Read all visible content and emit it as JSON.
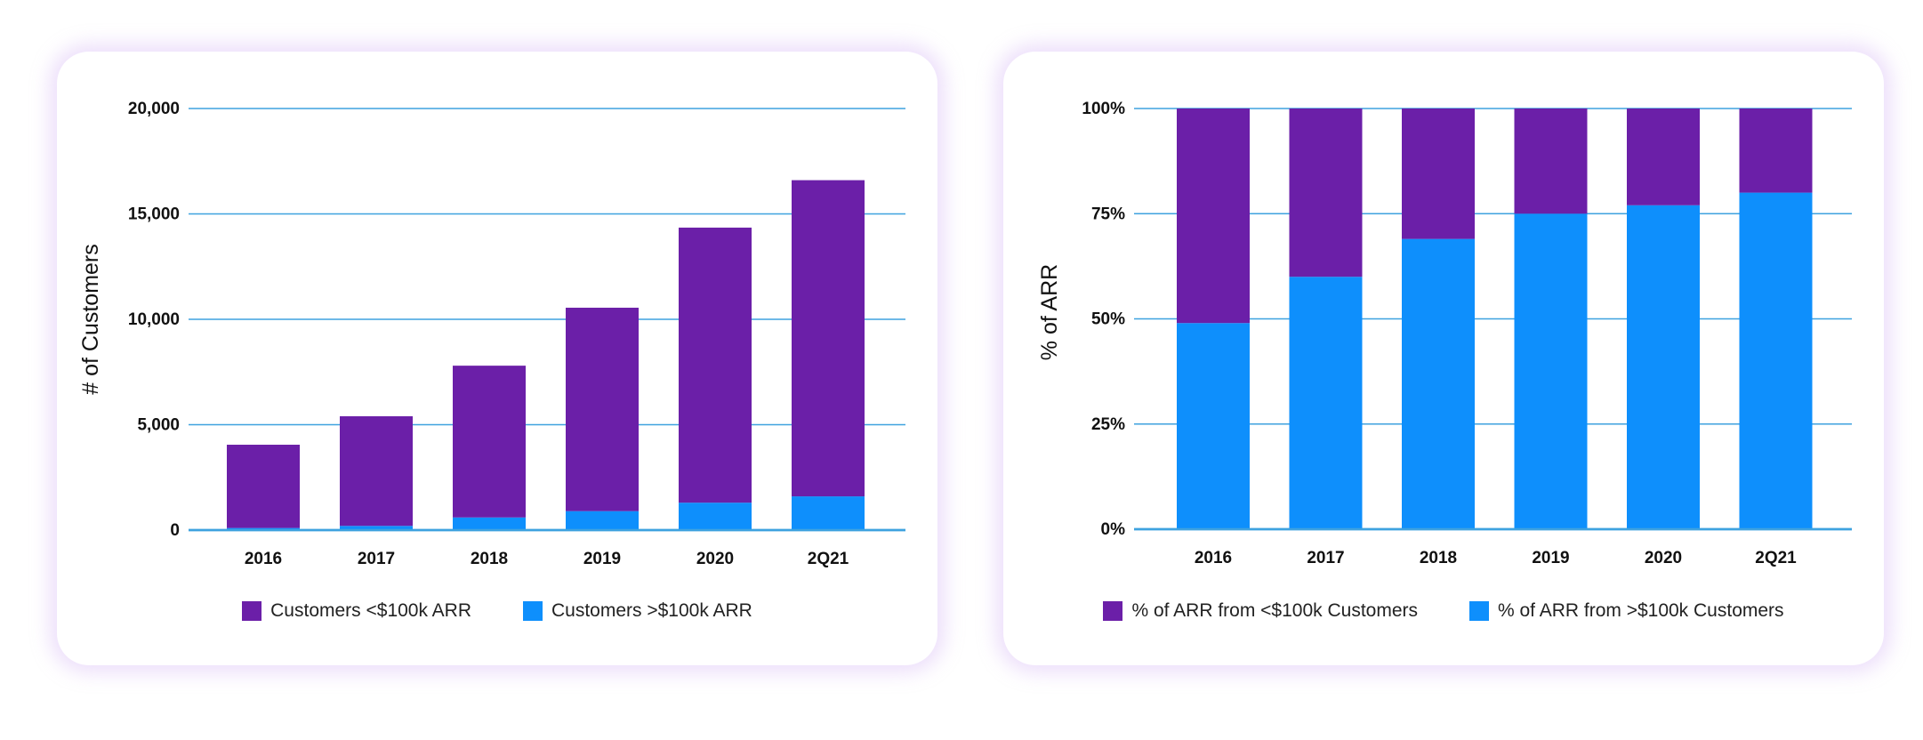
{
  "colors": {
    "purple": "#6b1fa8",
    "blue": "#0e8ffc",
    "grid": "#3ea2df"
  },
  "chart_data": [
    {
      "type": "bar",
      "stacked": true,
      "title": "",
      "xlabel": "",
      "ylabel": "# of Customers",
      "ylim": [
        0,
        20000
      ],
      "yticks": [
        "0",
        "5,000",
        "10,000",
        "15,000",
        "20,000"
      ],
      "ytick_values": [
        0,
        5000,
        10000,
        15000,
        20000
      ],
      "categories": [
        "2016",
        "2017",
        "2018",
        "2019",
        "2020",
        "2Q21"
      ],
      "series": [
        {
          "name": "Customers >$100k ARR",
          "color": "#0e8ffc",
          "values": [
            100,
            200,
            600,
            900,
            1300,
            1600
          ]
        },
        {
          "name": "Customers <$100k ARR",
          "color": "#6b1fa8",
          "values": [
            3950,
            5200,
            7200,
            9650,
            13050,
            15000
          ]
        }
      ],
      "legend": [
        "Customers <$100k ARR",
        "Customers >$100k ARR"
      ],
      "legend_position": "bottom",
      "grid": true
    },
    {
      "type": "bar",
      "stacked": true,
      "title": "",
      "xlabel": "",
      "ylabel": "% of ARR",
      "ylim": [
        0,
        100
      ],
      "yticks": [
        "0%",
        "25%",
        "50%",
        "75%",
        "100%"
      ],
      "ytick_values": [
        0,
        25,
        50,
        75,
        100
      ],
      "categories": [
        "2016",
        "2017",
        "2018",
        "2019",
        "2020",
        "2Q21"
      ],
      "series": [
        {
          "name": "% of ARR from >$100k Customers",
          "color": "#0e8ffc",
          "values": [
            49,
            60,
            69,
            75,
            77,
            80
          ]
        },
        {
          "name": "% of ARR from <$100k Customers",
          "color": "#6b1fa8",
          "values": [
            51,
            40,
            31,
            25,
            23,
            20
          ]
        }
      ],
      "legend": [
        "% of ARR from <$100k Customers",
        "% of ARR from >$100k Customers"
      ],
      "legend_position": "bottom",
      "grid": true
    }
  ]
}
